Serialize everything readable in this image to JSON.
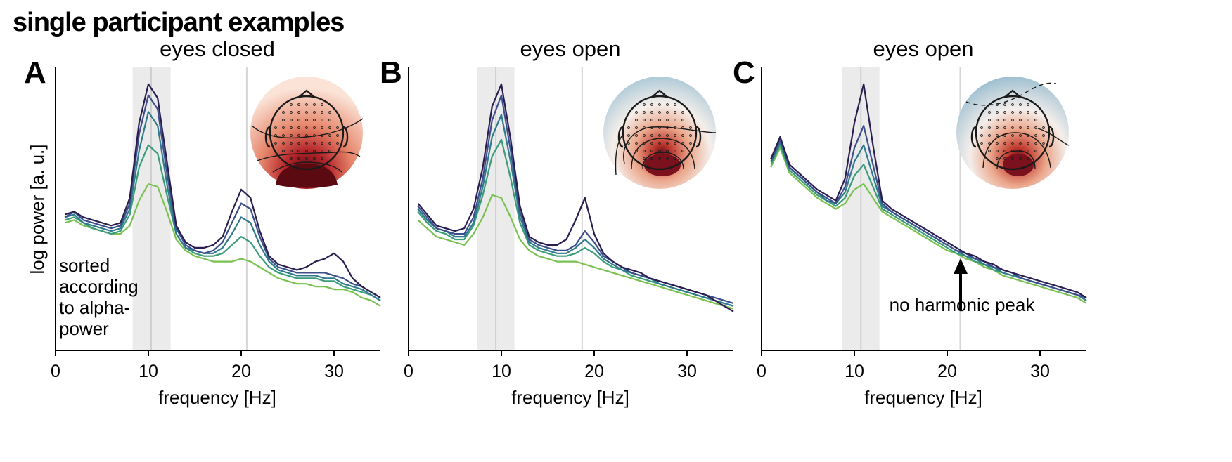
{
  "figure_title": "single participant examples",
  "chart_data": [
    {
      "type": "line",
      "panel": "A",
      "title": "eyes closed",
      "xlabel": "frequency [Hz]",
      "ylabel": "log power [a. u.]",
      "xlim": [
        0,
        35
      ],
      "xticks": [
        0,
        10,
        20,
        30
      ],
      "ylim": [
        0,
        10
      ],
      "yticks_shown": false,
      "alpha_band": [
        8.3,
        12.4
      ],
      "alpha_peak": 10.3,
      "harmonic_line": 20.6,
      "annotation": "sorted according to alpha- power",
      "annotation_lines": [
        "sorted",
        "according",
        "to alpha-",
        "power"
      ],
      "topography": "posterior alpha power, red (all positive)",
      "series_colors": [
        "#7ac152",
        "#3a9c79",
        "#2f7a8c",
        "#3c4f8c",
        "#2b1d4f"
      ],
      "x": [
        1,
        2,
        3,
        4,
        5,
        6,
        7,
        8,
        9,
        10,
        11,
        12,
        13,
        14,
        15,
        16,
        17,
        18,
        19,
        20,
        21,
        22,
        23,
        24,
        25,
        26,
        27,
        28,
        29,
        30,
        31,
        32,
        33,
        34,
        35
      ],
      "series": [
        {
          "values": [
            4.6,
            4.7,
            4.5,
            4.4,
            4.3,
            4.2,
            4.2,
            4.5,
            5.4,
            6.0,
            5.9,
            5.0,
            4.0,
            3.6,
            3.4,
            3.3,
            3.2,
            3.2,
            3.2,
            3.3,
            3.2,
            3.0,
            2.8,
            2.6,
            2.5,
            2.4,
            2.4,
            2.3,
            2.3,
            2.2,
            2.2,
            2.1,
            1.9,
            1.8,
            1.6
          ]
        },
        {
          "values": [
            4.7,
            4.8,
            4.6,
            4.4,
            4.3,
            4.2,
            4.3,
            4.9,
            6.6,
            7.4,
            7.1,
            5.6,
            4.2,
            3.7,
            3.5,
            3.4,
            3.4,
            3.5,
            3.8,
            4.1,
            3.9,
            3.4,
            3.0,
            2.8,
            2.7,
            2.6,
            2.6,
            2.6,
            2.5,
            2.5,
            2.3,
            2.2,
            2.1,
            2.0,
            1.8
          ]
        },
        {
          "values": [
            4.8,
            4.9,
            4.6,
            4.5,
            4.4,
            4.3,
            4.4,
            5.1,
            7.2,
            8.6,
            8.1,
            6.0,
            4.2,
            3.7,
            3.6,
            3.5,
            3.5,
            3.7,
            4.2,
            4.8,
            4.6,
            3.8,
            3.2,
            2.9,
            2.8,
            2.7,
            2.7,
            2.7,
            2.6,
            2.6,
            2.4,
            2.3,
            2.2,
            2.0,
            1.8
          ]
        },
        {
          "values": [
            4.8,
            5.0,
            4.7,
            4.6,
            4.5,
            4.4,
            4.5,
            5.3,
            7.8,
            9.2,
            8.7,
            6.4,
            4.4,
            3.8,
            3.6,
            3.5,
            3.6,
            3.9,
            4.6,
            5.3,
            5.1,
            4.1,
            3.3,
            3.0,
            2.9,
            2.8,
            2.8,
            2.8,
            2.8,
            2.7,
            2.6,
            2.4,
            2.3,
            2.1,
            1.9
          ]
        },
        {
          "values": [
            4.9,
            5.0,
            4.8,
            4.7,
            4.6,
            4.5,
            4.6,
            5.5,
            8.2,
            9.6,
            9.1,
            6.8,
            4.5,
            3.9,
            3.7,
            3.7,
            3.8,
            4.1,
            5.0,
            5.8,
            5.5,
            4.3,
            3.4,
            3.1,
            3.0,
            2.9,
            3.0,
            3.2,
            3.3,
            3.5,
            3.2,
            2.6,
            2.3,
            2.1,
            1.9
          ]
        }
      ]
    },
    {
      "type": "line",
      "panel": "B",
      "title": "eyes open",
      "xlabel": "frequency [Hz]",
      "xlim": [
        0,
        35
      ],
      "xticks": [
        0,
        10,
        20,
        30
      ],
      "ylim": [
        0,
        10
      ],
      "yticks_shown": false,
      "alpha_band": [
        7.4,
        11.4
      ],
      "alpha_peak": 9.4,
      "harmonic_line": 18.7,
      "topography": "posterior alpha power, red center with blue frontal",
      "series_colors": [
        "#7ac152",
        "#3a9c79",
        "#2f7a8c",
        "#3c4f8c",
        "#2b1d4f"
      ],
      "x": [
        1,
        2,
        3,
        4,
        5,
        6,
        7,
        8,
        9,
        10,
        11,
        12,
        13,
        14,
        15,
        16,
        17,
        18,
        19,
        20,
        21,
        22,
        23,
        24,
        25,
        26,
        27,
        28,
        29,
        30,
        31,
        32,
        33,
        34,
        35
      ],
      "series": [
        {
          "values": [
            4.7,
            4.4,
            4.1,
            4.0,
            3.9,
            3.8,
            4.2,
            4.8,
            5.6,
            5.5,
            4.8,
            4.0,
            3.6,
            3.4,
            3.3,
            3.2,
            3.2,
            3.2,
            3.1,
            3.0,
            2.9,
            2.8,
            2.7,
            2.6,
            2.5,
            2.4,
            2.3,
            2.2,
            2.1,
            2.0,
            1.9,
            1.8,
            1.7,
            1.6,
            1.5
          ]
        },
        {
          "values": [
            5.0,
            4.6,
            4.3,
            4.2,
            4.0,
            4.0,
            4.5,
            5.6,
            7.0,
            7.6,
            6.2,
            4.6,
            3.8,
            3.6,
            3.5,
            3.4,
            3.4,
            3.5,
            3.7,
            3.5,
            3.2,
            3.0,
            2.9,
            2.7,
            2.6,
            2.5,
            2.4,
            2.3,
            2.2,
            2.1,
            2.0,
            1.9,
            1.8,
            1.7,
            1.6
          ]
        },
        {
          "values": [
            5.1,
            4.7,
            4.4,
            4.3,
            4.1,
            4.1,
            4.6,
            5.9,
            7.7,
            8.5,
            6.8,
            4.8,
            3.9,
            3.7,
            3.6,
            3.5,
            3.5,
            3.7,
            4.0,
            3.7,
            3.3,
            3.1,
            2.9,
            2.8,
            2.7,
            2.6,
            2.4,
            2.3,
            2.2,
            2.1,
            2.0,
            1.9,
            1.8,
            1.7,
            1.6
          ]
        },
        {
          "values": [
            5.2,
            4.8,
            4.4,
            4.3,
            4.2,
            4.2,
            4.8,
            6.2,
            8.3,
            9.2,
            7.2,
            5.0,
            4.0,
            3.8,
            3.7,
            3.6,
            3.6,
            3.8,
            4.3,
            3.9,
            3.4,
            3.2,
            3.0,
            2.8,
            2.7,
            2.6,
            2.5,
            2.4,
            2.3,
            2.2,
            2.1,
            2.0,
            1.9,
            1.8,
            1.7
          ]
        },
        {
          "values": [
            5.3,
            4.9,
            4.5,
            4.4,
            4.3,
            4.4,
            5.1,
            6.6,
            8.8,
            9.6,
            7.6,
            5.2,
            4.1,
            3.9,
            3.8,
            3.8,
            4.0,
            4.7,
            5.5,
            4.2,
            3.5,
            3.2,
            3.0,
            2.9,
            2.8,
            2.6,
            2.5,
            2.4,
            2.3,
            2.2,
            2.1,
            2.0,
            1.8,
            1.6,
            1.4
          ]
        }
      ]
    },
    {
      "type": "line",
      "panel": "C",
      "title": "eyes open",
      "xlabel": "frequency [Hz]",
      "xlim": [
        0,
        35
      ],
      "xticks": [
        0,
        10,
        20,
        30
      ],
      "ylim": [
        0,
        10
      ],
      "yticks_shown": false,
      "alpha_band": [
        8.7,
        12.7
      ],
      "alpha_peak": 10.7,
      "harmonic_line": 21.4,
      "annotation": "no harmonic peak",
      "topography": "posterior alpha power, red center with blue frontal, dashed contour",
      "series_colors": [
        "#7ac152",
        "#3a9c79",
        "#2f7a8c",
        "#3c4f8c",
        "#2b1d4f"
      ],
      "x": [
        1,
        2,
        3,
        4,
        5,
        6,
        7,
        8,
        9,
        10,
        11,
        12,
        13,
        14,
        15,
        16,
        17,
        18,
        19,
        20,
        21,
        22,
        23,
        24,
        25,
        26,
        27,
        28,
        29,
        30,
        31,
        32,
        33,
        34,
        35
      ],
      "series": [
        {
          "values": [
            6.6,
            7.3,
            6.4,
            6.1,
            5.8,
            5.5,
            5.3,
            5.1,
            5.3,
            5.8,
            6.0,
            5.5,
            5.0,
            4.8,
            4.6,
            4.4,
            4.2,
            4.0,
            3.8,
            3.6,
            3.5,
            3.3,
            3.2,
            3.0,
            2.9,
            2.7,
            2.6,
            2.5,
            2.4,
            2.3,
            2.2,
            2.1,
            2.0,
            1.9,
            1.7
          ]
        },
        {
          "values": [
            6.7,
            7.4,
            6.5,
            6.2,
            5.9,
            5.6,
            5.4,
            5.2,
            5.5,
            6.3,
            6.7,
            5.9,
            5.1,
            4.9,
            4.7,
            4.5,
            4.3,
            4.1,
            3.9,
            3.7,
            3.5,
            3.4,
            3.2,
            3.1,
            2.9,
            2.8,
            2.7,
            2.6,
            2.5,
            2.4,
            2.3,
            2.2,
            2.1,
            2.0,
            1.8
          ]
        },
        {
          "values": [
            6.8,
            7.5,
            6.6,
            6.3,
            6.0,
            5.7,
            5.4,
            5.3,
            5.7,
            6.8,
            7.4,
            6.3,
            5.2,
            5.0,
            4.8,
            4.6,
            4.4,
            4.2,
            4.0,
            3.8,
            3.6,
            3.4,
            3.3,
            3.1,
            3.0,
            2.8,
            2.7,
            2.6,
            2.5,
            2.4,
            2.3,
            2.2,
            2.1,
            2.0,
            1.8
          ]
        },
        {
          "values": [
            6.8,
            7.6,
            6.6,
            6.3,
            6.0,
            5.7,
            5.5,
            5.3,
            5.9,
            7.3,
            8.1,
            6.7,
            5.3,
            5.0,
            4.8,
            4.6,
            4.4,
            4.2,
            4.0,
            3.8,
            3.6,
            3.5,
            3.3,
            3.2,
            3.0,
            2.9,
            2.8,
            2.6,
            2.5,
            2.4,
            2.3,
            2.2,
            2.1,
            2.0,
            1.9
          ]
        },
        {
          "values": [
            6.9,
            7.7,
            6.7,
            6.4,
            6.1,
            5.8,
            5.6,
            5.4,
            6.2,
            8.2,
            9.6,
            7.4,
            5.4,
            5.1,
            4.9,
            4.7,
            4.5,
            4.3,
            4.1,
            3.9,
            3.7,
            3.5,
            3.4,
            3.2,
            3.1,
            2.9,
            2.8,
            2.7,
            2.6,
            2.5,
            2.4,
            2.3,
            2.2,
            2.1,
            1.9
          ]
        }
      ]
    }
  ]
}
